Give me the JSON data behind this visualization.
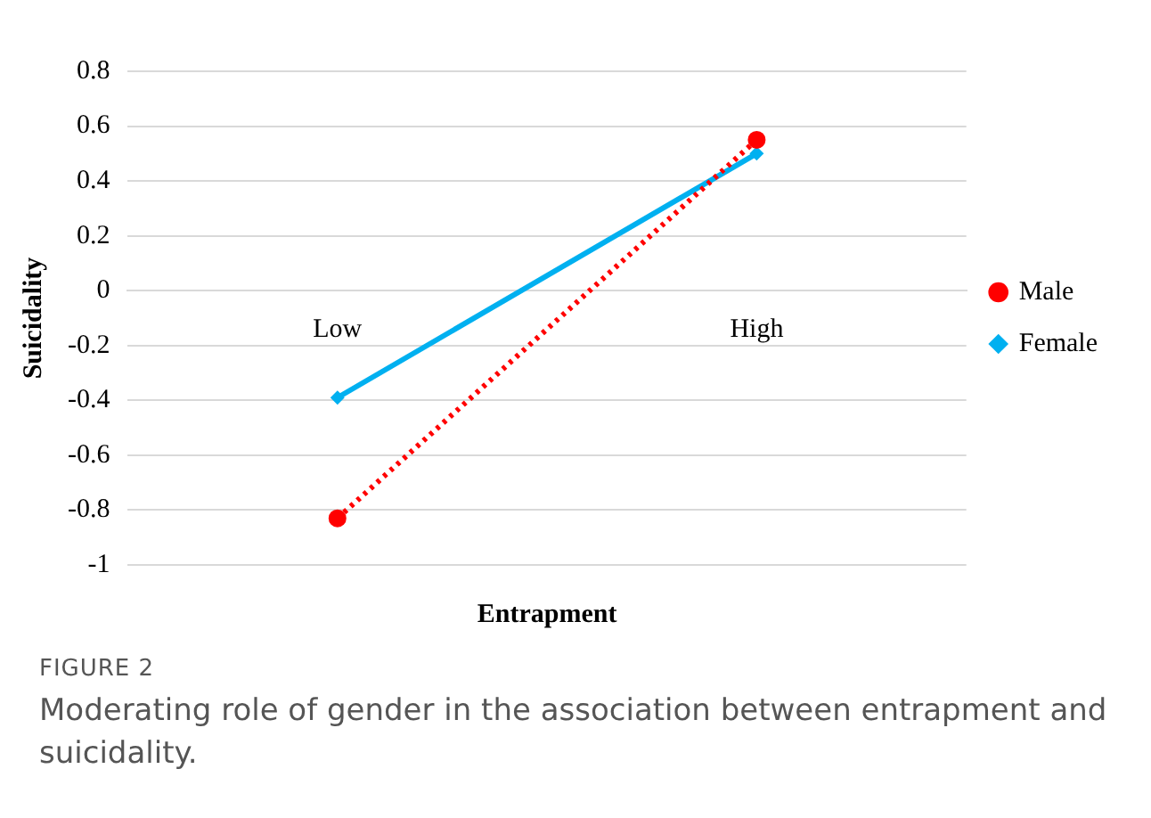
{
  "chart_data": {
    "type": "line",
    "xlabel": "Entrapment",
    "ylabel": "Suicidality",
    "categories": [
      "Low",
      "High"
    ],
    "series": [
      {
        "name": "Male",
        "color": "#ff0000",
        "values": [
          -0.83,
          0.55
        ],
        "marker": "circle",
        "line_style": "dotted"
      },
      {
        "name": "Female",
        "color": "#00b0f0",
        "values": [
          -0.39,
          0.5
        ],
        "marker": "diamond",
        "line_style": "solid"
      }
    ],
    "ylim": [
      -1,
      0.8
    ],
    "yticks": [
      -1,
      -0.8,
      -0.6,
      -0.4,
      -0.2,
      0,
      0.2,
      0.4,
      0.6,
      0.8
    ],
    "grid": "y",
    "legend": "right",
    "annotations": [
      "FIGURE 2",
      "Moderating role of gender in the association between entrapment and suicidality."
    ]
  }
}
